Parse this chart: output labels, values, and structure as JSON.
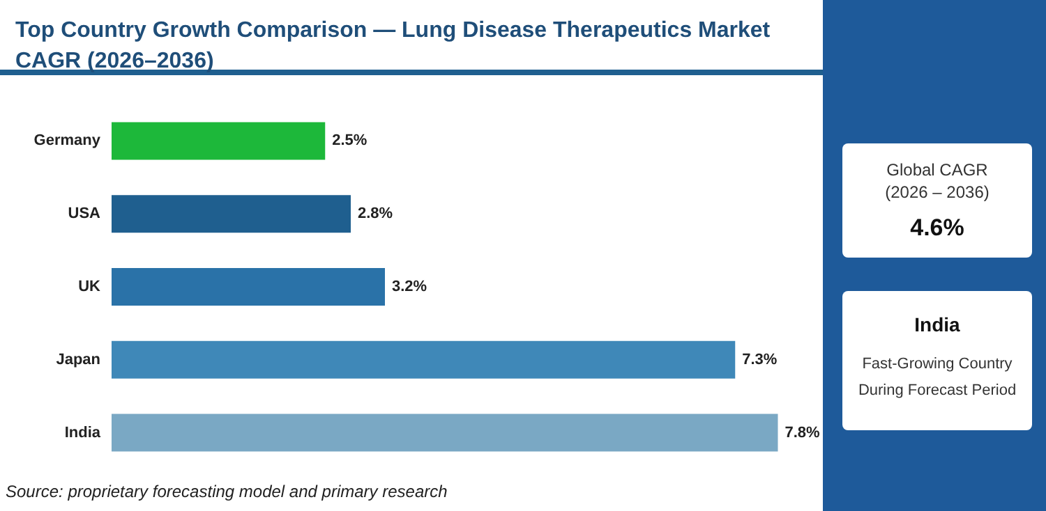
{
  "chart_data": {
    "type": "bar",
    "orientation": "horizontal",
    "title": "Top Country Growth Comparison — Lung Disease Therapeutics Market CAGR (2026–2036)",
    "categories": [
      "Germany",
      "USA",
      "UK",
      "Japan",
      "India"
    ],
    "values": [
      2.5,
      2.8,
      3.2,
      7.3,
      7.8
    ],
    "colors": [
      "#1db83a",
      "#1f5f8f",
      "#2a72a8",
      "#3f88b8",
      "#7aa8c4"
    ],
    "value_labels": [
      "2.5%",
      "2.8%",
      "3.2%",
      "7.3%",
      "7.8%"
    ],
    "annotations": [
      "Global CAGR\n(2026 – 2036)",
      "4.6%",
      "India",
      "Fast-Growing Country\nDuring Forecast Period",
      "Source: proprietary forecasting model and primary research"
    ]
  }
}
